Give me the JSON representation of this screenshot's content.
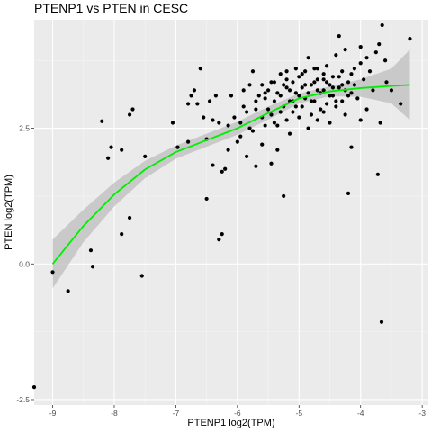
{
  "chart_data": {
    "type": "scatter",
    "title": "PTENP1 vs  PTEN in CESC",
    "xlabel": "PTENP1 log2(TPM)",
    "ylabel": "PTEN log2(TPM)",
    "xlim": [
      -9.3,
      -2.9
    ],
    "ylim": [
      -2.6,
      4.5
    ],
    "x_ticks": [
      -9,
      -8,
      -7,
      -6,
      -5,
      -4,
      -3
    ],
    "x_tick_labels": [
      "-9",
      "-8",
      "-7",
      "-6",
      "-5",
      "-4",
      "-3"
    ],
    "y_ticks": [
      -2.5,
      0,
      2.5
    ],
    "y_tick_labels": [
      "-2.5",
      "0.0",
      "2.5"
    ],
    "grid": true,
    "panel_background": "#ebebeb",
    "point_color": "#000000",
    "trend_color": "#00ee00",
    "band_color": "#bdbdbd",
    "points": [
      [
        -9.3,
        -2.27
      ],
      [
        -9.0,
        -0.15
      ],
      [
        -8.75,
        -0.5
      ],
      [
        -8.38,
        0.25
      ],
      [
        -8.35,
        -0.05
      ],
      [
        -8.2,
        2.63
      ],
      [
        -8.1,
        1.95
      ],
      [
        -8.05,
        2.15
      ],
      [
        -7.88,
        2.1
      ],
      [
        -7.88,
        0.55
      ],
      [
        -7.75,
        0.85
      ],
      [
        -7.75,
        2.75
      ],
      [
        -7.7,
        2.85
      ],
      [
        -7.55,
        -0.22
      ],
      [
        -7.5,
        1.98
      ],
      [
        -7.05,
        2.6
      ],
      [
        -6.97,
        2.15
      ],
      [
        -6.8,
        2.95
      ],
      [
        -6.8,
        2.25
      ],
      [
        -6.75,
        3.1
      ],
      [
        -6.7,
        3.2
      ],
      [
        -6.65,
        2.95
      ],
      [
        -6.6,
        3.6
      ],
      [
        -6.55,
        2.7
      ],
      [
        -6.5,
        1.2
      ],
      [
        -6.5,
        2.3
      ],
      [
        -6.45,
        3.0
      ],
      [
        -6.4,
        2.65
      ],
      [
        -6.4,
        1.82
      ],
      [
        -6.35,
        3.1
      ],
      [
        -6.3,
        2.6
      ],
      [
        -6.3,
        0.45
      ],
      [
        -6.25,
        0.55
      ],
      [
        -6.25,
        1.7
      ],
      [
        -6.2,
        1.75
      ],
      [
        -6.15,
        2.1
      ],
      [
        -6.15,
        2.55
      ],
      [
        -6.1,
        3.1
      ],
      [
        -6.05,
        2.7
      ],
      [
        -6.0,
        2.25
      ],
      [
        -5.95,
        2.35
      ],
      [
        -5.95,
        2.6
      ],
      [
        -5.9,
        3.2
      ],
      [
        -5.85,
        2.8
      ],
      [
        -5.85,
        1.98
      ],
      [
        -5.8,
        2.5
      ],
      [
        -5.75,
        3.55
      ],
      [
        -5.75,
        2.45
      ],
      [
        -5.7,
        1.8
      ],
      [
        -5.7,
        2.85
      ],
      [
        -5.65,
        3.1
      ],
      [
        -5.6,
        3.3
      ],
      [
        -5.6,
        2.2
      ],
      [
        -5.55,
        3.05
      ],
      [
        -5.55,
        2.55
      ],
      [
        -5.5,
        3.2
      ],
      [
        -5.45,
        2.75
      ],
      [
        -5.45,
        1.85
      ],
      [
        -5.4,
        3.0
      ],
      [
        -5.4,
        3.35
      ],
      [
        -5.35,
        2.1
      ],
      [
        -5.35,
        2.55
      ],
      [
        -5.3,
        3.1
      ],
      [
        -5.3,
        3.5
      ],
      [
        -5.25,
        1.25
      ],
      [
        -5.25,
        2.9
      ],
      [
        -5.2,
        3.55
      ],
      [
        -5.2,
        2.65
      ],
      [
        -5.2,
        3.25
      ],
      [
        -5.15,
        2.4
      ],
      [
        -5.15,
        3.0
      ],
      [
        -5.1,
        3.35
      ],
      [
        -5.1,
        2.8
      ],
      [
        -5.05,
        3.6
      ],
      [
        -5.05,
        3.15
      ],
      [
        -5.0,
        2.7
      ],
      [
        -5.0,
        3.45
      ],
      [
        -4.95,
        2.9
      ],
      [
        -4.95,
        3.25
      ],
      [
        -4.9,
        3.55
      ],
      [
        -4.9,
        3.05
      ],
      [
        -4.85,
        2.5
      ],
      [
        -4.85,
        3.8
      ],
      [
        -4.8,
        3.3
      ],
      [
        -4.8,
        2.75
      ],
      [
        -4.75,
        3.6
      ],
      [
        -4.75,
        3.0
      ],
      [
        -4.7,
        2.65
      ],
      [
        -4.7,
        3.4
      ],
      [
        -4.65,
        3.15
      ],
      [
        -4.65,
        2.85
      ],
      [
        -4.6,
        3.5
      ],
      [
        -4.6,
        3.2
      ],
      [
        -4.55,
        2.95
      ],
      [
        -4.55,
        3.65
      ],
      [
        -4.5,
        3.3
      ],
      [
        -4.5,
        2.6
      ],
      [
        -4.45,
        3.1
      ],
      [
        -4.45,
        3.45
      ],
      [
        -4.4,
        3.85
      ],
      [
        -4.4,
        2.9
      ],
      [
        -4.35,
        3.25
      ],
      [
        -4.35,
        4.2
      ],
      [
        -4.3,
        3.55
      ],
      [
        -4.3,
        3.0
      ],
      [
        -4.25,
        2.75
      ],
      [
        -4.25,
        3.95
      ],
      [
        -4.2,
        3.35
      ],
      [
        -4.2,
        1.3
      ],
      [
        -4.15,
        3.15
      ],
      [
        -4.15,
        2.15
      ],
      [
        -4.1,
        3.6
      ],
      [
        -4.05,
        3.05
      ],
      [
        -4.0,
        2.65
      ],
      [
        -4.0,
        3.7
      ],
      [
        -4.0,
        4.0
      ],
      [
        -3.95,
        3.4
      ],
      [
        -3.9,
        2.85
      ],
      [
        -3.9,
        3.8
      ],
      [
        -3.85,
        3.55
      ],
      [
        -3.8,
        3.2
      ],
      [
        -3.75,
        3.9
      ],
      [
        -3.72,
        1.65
      ],
      [
        -3.7,
        4.05
      ],
      [
        -3.68,
        2.6
      ],
      [
        -3.66,
        -1.07
      ],
      [
        -3.65,
        4.4
      ],
      [
        -3.6,
        3.75
      ],
      [
        -3.58,
        3.35
      ],
      [
        -3.5,
        3.2
      ],
      [
        -3.35,
        2.95
      ],
      [
        -3.2,
        4.15
      ],
      [
        -5.9,
        2.9
      ],
      [
        -5.8,
        3.3
      ],
      [
        -5.7,
        3.0
      ],
      [
        -5.6,
        2.7
      ],
      [
        -5.5,
        2.85
      ],
      [
        -5.4,
        2.6
      ],
      [
        -5.3,
        2.8
      ],
      [
        -5.2,
        3.4
      ],
      [
        -5.1,
        3.0
      ],
      [
        -5.0,
        3.1
      ],
      [
        -4.9,
        3.3
      ],
      [
        -4.8,
        3.0
      ],
      [
        -4.7,
        3.2
      ],
      [
        -4.6,
        2.8
      ],
      [
        -4.5,
        3.1
      ],
      [
        -4.4,
        3.0
      ],
      [
        -4.3,
        3.3
      ],
      [
        -4.2,
        3.1
      ],
      [
        -4.1,
        3.3
      ],
      [
        -4.6,
        3.4
      ],
      [
        -4.7,
        3.6
      ],
      [
        -4.95,
        3.5
      ],
      [
        -5.05,
        2.9
      ],
      [
        -5.15,
        3.2
      ],
      [
        -5.25,
        3.3
      ],
      [
        -5.35,
        3.15
      ],
      [
        -5.45,
        3.35
      ],
      [
        -5.55,
        3.15
      ],
      [
        -4.85,
        3.15
      ],
      [
        -4.75,
        3.35
      ],
      [
        -4.55,
        3.35
      ],
      [
        -4.45,
        3.25
      ],
      [
        -4.35,
        3.45
      ],
      [
        -4.25,
        3.2
      ],
      [
        -4.15,
        3.5
      ]
    ],
    "trend": [
      [
        -9.0,
        0.0
      ],
      [
        -8.5,
        0.7
      ],
      [
        -8.0,
        1.28
      ],
      [
        -7.5,
        1.74
      ],
      [
        -7.0,
        2.06
      ],
      [
        -6.5,
        2.28
      ],
      [
        -6.0,
        2.5
      ],
      [
        -5.5,
        2.78
      ],
      [
        -5.0,
        3.05
      ],
      [
        -4.5,
        3.18
      ],
      [
        -4.0,
        3.24
      ],
      [
        -3.5,
        3.28
      ],
      [
        -3.2,
        3.3
      ]
    ],
    "band_upper": [
      [
        -9.0,
        0.45
      ],
      [
        -8.5,
        1.0
      ],
      [
        -8.0,
        1.5
      ],
      [
        -7.5,
        1.9
      ],
      [
        -7.0,
        2.18
      ],
      [
        -6.5,
        2.4
      ],
      [
        -6.0,
        2.62
      ],
      [
        -5.5,
        2.9
      ],
      [
        -5.0,
        3.14
      ],
      [
        -4.5,
        3.27
      ],
      [
        -4.0,
        3.4
      ],
      [
        -3.5,
        3.6
      ],
      [
        -3.2,
        3.95
      ]
    ],
    "band_lower": [
      [
        -9.0,
        -0.45
      ],
      [
        -8.5,
        0.4
      ],
      [
        -8.0,
        1.06
      ],
      [
        -7.5,
        1.58
      ],
      [
        -7.0,
        1.94
      ],
      [
        -6.5,
        2.16
      ],
      [
        -6.0,
        2.38
      ],
      [
        -5.5,
        2.66
      ],
      [
        -5.0,
        2.96
      ],
      [
        -4.5,
        3.09
      ],
      [
        -4.0,
        3.08
      ],
      [
        -3.5,
        2.96
      ],
      [
        -3.2,
        2.65
      ]
    ]
  }
}
